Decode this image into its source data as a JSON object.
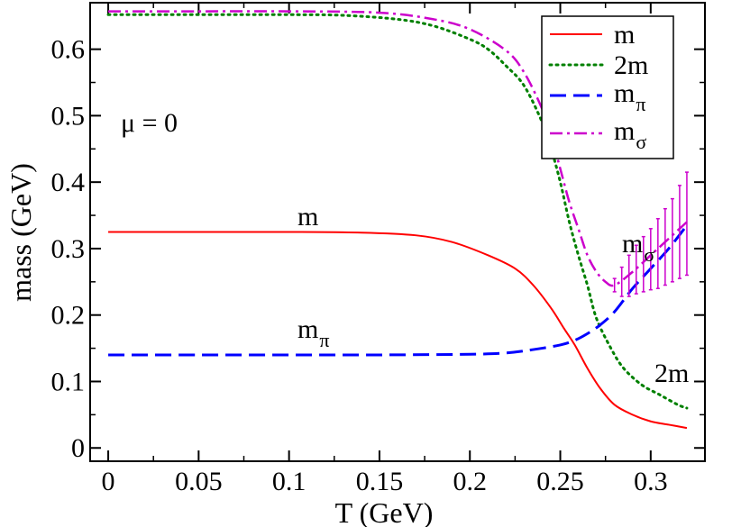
{
  "chart_data": {
    "type": "line",
    "xlabel": "T (GeV)",
    "ylabel": "mass (GeV)",
    "xlim": [
      -0.01,
      0.33
    ],
    "ylim": [
      -0.02,
      0.67
    ],
    "x_ticks": [
      "0",
      "0.05",
      "0.1",
      "0.15",
      "0.2",
      "0.25",
      "0.3"
    ],
    "y_ticks": [
      "0",
      "0.1",
      "0.2",
      "0.3",
      "0.4",
      "0.5",
      "0.6"
    ],
    "grid": false,
    "legend_position": "top-right",
    "series": [
      {
        "name": "m",
        "style": "solid",
        "color": "#ff0000",
        "points": [
          [
            0,
            0.325
          ],
          [
            0.05,
            0.325
          ],
          [
            0.1,
            0.325
          ],
          [
            0.14,
            0.324
          ],
          [
            0.17,
            0.32
          ],
          [
            0.19,
            0.31
          ],
          [
            0.21,
            0.29
          ],
          [
            0.225,
            0.27
          ],
          [
            0.235,
            0.245
          ],
          [
            0.245,
            0.21
          ],
          [
            0.252,
            0.18
          ],
          [
            0.258,
            0.155
          ],
          [
            0.265,
            0.12
          ],
          [
            0.272,
            0.09
          ],
          [
            0.28,
            0.065
          ],
          [
            0.29,
            0.05
          ],
          [
            0.3,
            0.04
          ],
          [
            0.31,
            0.035
          ],
          [
            0.32,
            0.03
          ]
        ]
      },
      {
        "name": "2m",
        "style": "dotted",
        "color": "#008000",
        "points": [
          [
            0,
            0.652
          ],
          [
            0.05,
            0.652
          ],
          [
            0.1,
            0.652
          ],
          [
            0.13,
            0.651
          ],
          [
            0.16,
            0.645
          ],
          [
            0.18,
            0.635
          ],
          [
            0.2,
            0.615
          ],
          [
            0.21,
            0.6
          ],
          [
            0.22,
            0.575
          ],
          [
            0.23,
            0.545
          ],
          [
            0.24,
            0.49
          ],
          [
            0.245,
            0.45
          ],
          [
            0.25,
            0.4
          ],
          [
            0.255,
            0.34
          ],
          [
            0.26,
            0.29
          ],
          [
            0.265,
            0.245
          ],
          [
            0.27,
            0.195
          ],
          [
            0.278,
            0.15
          ],
          [
            0.285,
            0.12
          ],
          [
            0.295,
            0.095
          ],
          [
            0.305,
            0.08
          ],
          [
            0.315,
            0.065
          ],
          [
            0.32,
            0.06
          ]
        ]
      },
      {
        "name": "m_π",
        "style": "dashed",
        "color": "#0000ff",
        "points": [
          [
            0,
            0.14
          ],
          [
            0.05,
            0.14
          ],
          [
            0.1,
            0.14
          ],
          [
            0.15,
            0.14
          ],
          [
            0.2,
            0.141
          ],
          [
            0.22,
            0.143
          ],
          [
            0.235,
            0.148
          ],
          [
            0.25,
            0.155
          ],
          [
            0.258,
            0.162
          ],
          [
            0.265,
            0.172
          ],
          [
            0.272,
            0.185
          ],
          [
            0.28,
            0.205
          ],
          [
            0.29,
            0.24
          ],
          [
            0.3,
            0.27
          ],
          [
            0.31,
            0.3
          ],
          [
            0.32,
            0.335
          ]
        ]
      },
      {
        "name": "m_σ",
        "style": "dashdot",
        "color": "#cc00cc",
        "points": [
          [
            0,
            0.657
          ],
          [
            0.05,
            0.657
          ],
          [
            0.1,
            0.657
          ],
          [
            0.15,
            0.655
          ],
          [
            0.18,
            0.645
          ],
          [
            0.2,
            0.63
          ],
          [
            0.22,
            0.598
          ],
          [
            0.23,
            0.565
          ],
          [
            0.24,
            0.51
          ],
          [
            0.245,
            0.47
          ],
          [
            0.25,
            0.42
          ],
          [
            0.255,
            0.37
          ],
          [
            0.26,
            0.33
          ],
          [
            0.265,
            0.29
          ],
          [
            0.27,
            0.265
          ],
          [
            0.275,
            0.25
          ],
          [
            0.28,
            0.245
          ],
          [
            0.29,
            0.265
          ],
          [
            0.3,
            0.29
          ],
          [
            0.31,
            0.315
          ],
          [
            0.32,
            0.34
          ]
        ],
        "error_bars": [
          {
            "x": 0.28,
            "lo": 0.235,
            "hi": 0.255
          },
          {
            "x": 0.284,
            "lo": 0.228,
            "hi": 0.272
          },
          {
            "x": 0.288,
            "lo": 0.228,
            "hi": 0.29
          },
          {
            "x": 0.292,
            "lo": 0.232,
            "hi": 0.305
          },
          {
            "x": 0.296,
            "lo": 0.235,
            "hi": 0.318
          },
          {
            "x": 0.3,
            "lo": 0.238,
            "hi": 0.33
          },
          {
            "x": 0.304,
            "lo": 0.24,
            "hi": 0.345
          },
          {
            "x": 0.308,
            "lo": 0.245,
            "hi": 0.36
          },
          {
            "x": 0.312,
            "lo": 0.25,
            "hi": 0.375
          },
          {
            "x": 0.316,
            "lo": 0.255,
            "hi": 0.395
          },
          {
            "x": 0.32,
            "lo": 0.26,
            "hi": 0.415
          }
        ]
      }
    ],
    "annotations": [
      {
        "text": "μ = 0",
        "x": 0.005,
        "y": 0.49
      },
      {
        "text": "m",
        "x": 0.1,
        "y": 0.34
      },
      {
        "text": "m_π",
        "x": 0.1,
        "y": 0.16
      },
      {
        "text": "m_σ",
        "x": 0.266,
        "y": 0.29
      },
      {
        "text": "2m",
        "x": 0.3,
        "y": 0.1
      }
    ]
  },
  "legend": {
    "items": [
      {
        "main": "m",
        "sub": ""
      },
      {
        "main": "2m",
        "sub": ""
      },
      {
        "main": "m",
        "sub": "π"
      },
      {
        "main": "m",
        "sub": "σ"
      }
    ]
  },
  "annotations": {
    "mu": "μ = 0",
    "m": "m",
    "mpi_main": "m",
    "mpi_sub": "π",
    "msigma_main": "m",
    "msigma_sub": "σ",
    "twom": "2m"
  }
}
